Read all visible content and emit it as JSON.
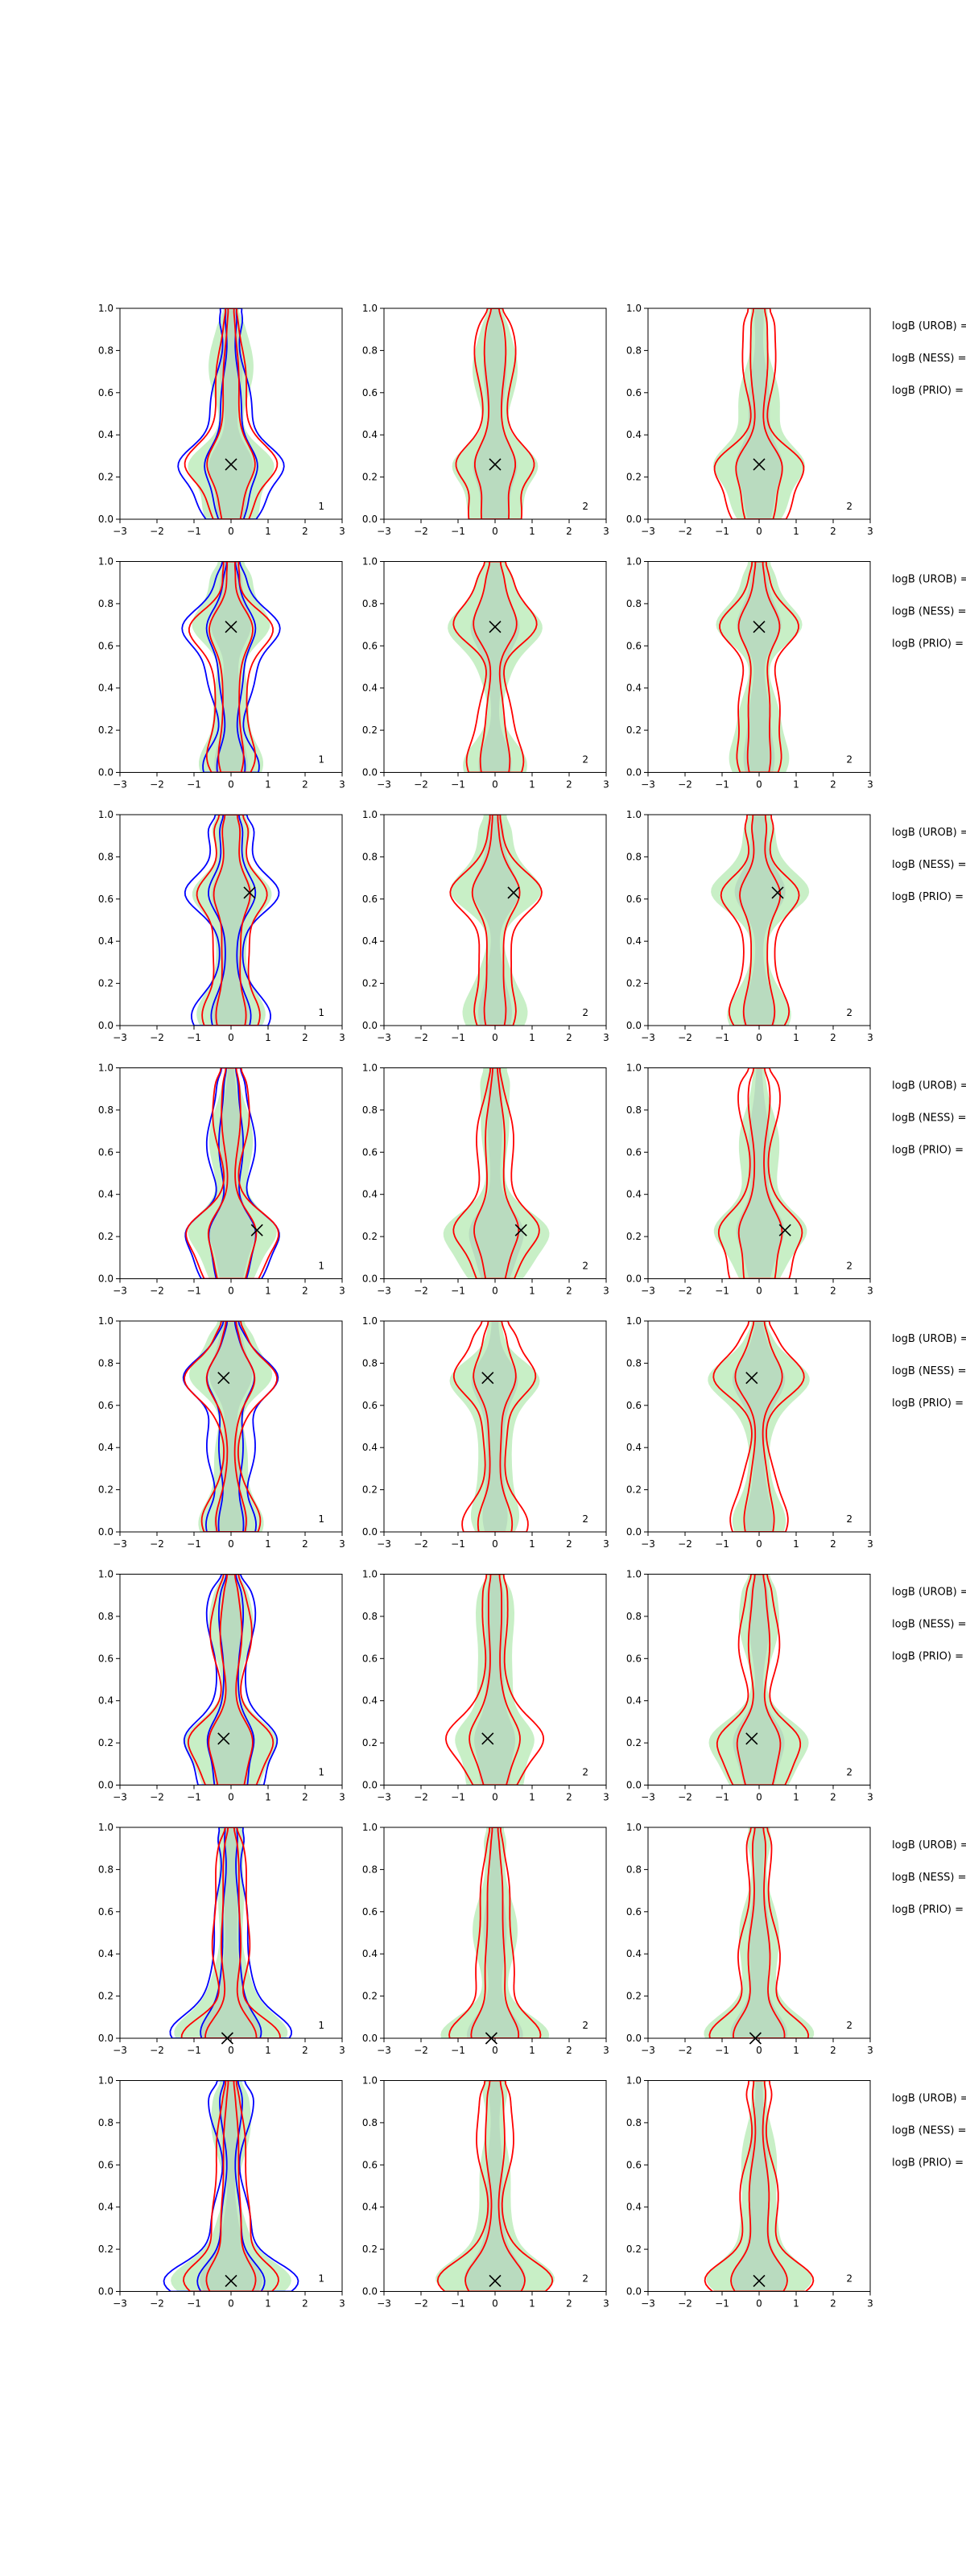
{
  "figure": {
    "legend_labels": [
      "logB (UROB) =",
      "logB (NESS) =",
      "logB (PRIO) ="
    ],
    "colors": {
      "urob": "#0000ff",
      "ness": "#00aa00",
      "prio": "#ff0000",
      "fill_light": "#c8efc6",
      "fill_dark": "#b9dbbf",
      "marker": "#000000"
    }
  },
  "chart_data": [
    {
      "row": 1,
      "col": 1,
      "type": "contour",
      "xlim": [
        -3,
        3
      ],
      "ylim": [
        0,
        1
      ],
      "xticks": [
        -3,
        -2,
        -1,
        0,
        1,
        2,
        3
      ],
      "yticks": [
        "0.0",
        "0.2",
        "0.4",
        "0.6",
        "0.8",
        "1.0"
      ],
      "marker": {
        "x": 0.0,
        "y": 0.26
      },
      "panel_label": "1"
    },
    {
      "row": 1,
      "col": 2,
      "type": "contour",
      "xlim": [
        -3,
        3
      ],
      "ylim": [
        0,
        1
      ],
      "xticks": [
        -3,
        -2,
        -1,
        0,
        1,
        2,
        3
      ],
      "yticks": [
        "0.0",
        "0.2",
        "0.4",
        "0.6",
        "0.8",
        "1.0"
      ],
      "marker": {
        "x": 0.0,
        "y": 0.26
      },
      "panel_label": "2"
    },
    {
      "row": 1,
      "col": 3,
      "type": "contour",
      "xlim": [
        -3,
        3
      ],
      "ylim": [
        0,
        1
      ],
      "xticks": [
        -3,
        -2,
        -1,
        0,
        1,
        2,
        3
      ],
      "yticks": [
        "0.0",
        "0.2",
        "0.4",
        "0.6",
        "0.8",
        "1.0"
      ],
      "marker": {
        "x": 0.0,
        "y": 0.26
      },
      "panel_label": "2"
    },
    {
      "row": 2,
      "col": 1,
      "type": "contour",
      "xlim": [
        -3,
        3
      ],
      "ylim": [
        0,
        1
      ],
      "xticks": [
        -3,
        -2,
        -1,
        0,
        1,
        2,
        3
      ],
      "yticks": [
        "0.0",
        "0.2",
        "0.4",
        "0.6",
        "0.8",
        "1.0"
      ],
      "marker": {
        "x": 0.0,
        "y": 0.69
      },
      "panel_label": "1"
    },
    {
      "row": 2,
      "col": 2,
      "type": "contour",
      "xlim": [
        -3,
        3
      ],
      "ylim": [
        0,
        1
      ],
      "xticks": [
        -3,
        -2,
        -1,
        0,
        1,
        2,
        3
      ],
      "yticks": [
        "0.0",
        "0.2",
        "0.4",
        "0.6",
        "0.8",
        "1.0"
      ],
      "marker": {
        "x": 0.0,
        "y": 0.69
      },
      "panel_label": "2"
    },
    {
      "row": 2,
      "col": 3,
      "type": "contour",
      "xlim": [
        -3,
        3
      ],
      "ylim": [
        0,
        1
      ],
      "xticks": [
        -3,
        -2,
        -1,
        0,
        1,
        2,
        3
      ],
      "yticks": [
        "0.0",
        "0.2",
        "0.4",
        "0.6",
        "0.8",
        "1.0"
      ],
      "marker": {
        "x": 0.0,
        "y": 0.69
      },
      "panel_label": "2"
    },
    {
      "row": 3,
      "col": 1,
      "type": "contour",
      "xlim": [
        -3,
        3
      ],
      "ylim": [
        0,
        1
      ],
      "xticks": [
        -3,
        -2,
        -1,
        0,
        1,
        2,
        3
      ],
      "yticks": [
        "0.0",
        "0.2",
        "0.4",
        "0.6",
        "0.8",
        "1.0"
      ],
      "marker": {
        "x": 0.5,
        "y": 0.63
      },
      "panel_label": "1"
    },
    {
      "row": 3,
      "col": 2,
      "type": "contour",
      "xlim": [
        -3,
        3
      ],
      "ylim": [
        0,
        1
      ],
      "xticks": [
        -3,
        -2,
        -1,
        0,
        1,
        2,
        3
      ],
      "yticks": [
        "0.0",
        "0.2",
        "0.4",
        "0.6",
        "0.8",
        "1.0"
      ],
      "marker": {
        "x": 0.5,
        "y": 0.63
      },
      "panel_label": "2"
    },
    {
      "row": 3,
      "col": 3,
      "type": "contour",
      "xlim": [
        -3,
        3
      ],
      "ylim": [
        0,
        1
      ],
      "xticks": [
        -3,
        -2,
        -1,
        0,
        1,
        2,
        3
      ],
      "yticks": [
        "0.0",
        "0.2",
        "0.4",
        "0.6",
        "0.8",
        "1.0"
      ],
      "marker": {
        "x": 0.5,
        "y": 0.63
      },
      "panel_label": "2"
    },
    {
      "row": 4,
      "col": 1,
      "type": "contour",
      "xlim": [
        -3,
        3
      ],
      "ylim": [
        0,
        1
      ],
      "xticks": [
        -3,
        -2,
        -1,
        0,
        1,
        2,
        3
      ],
      "yticks": [
        "0.0",
        "0.2",
        "0.4",
        "0.6",
        "0.8",
        "1.0"
      ],
      "marker": {
        "x": 0.7,
        "y": 0.23
      },
      "panel_label": "1"
    },
    {
      "row": 4,
      "col": 2,
      "type": "contour",
      "xlim": [
        -3,
        3
      ],
      "ylim": [
        0,
        1
      ],
      "xticks": [
        -3,
        -2,
        -1,
        0,
        1,
        2,
        3
      ],
      "yticks": [
        "0.0",
        "0.2",
        "0.4",
        "0.6",
        "0.8",
        "1.0"
      ],
      "marker": {
        "x": 0.7,
        "y": 0.23
      },
      "panel_label": "2"
    },
    {
      "row": 4,
      "col": 3,
      "type": "contour",
      "xlim": [
        -3,
        3
      ],
      "ylim": [
        0,
        1
      ],
      "xticks": [
        -3,
        -2,
        -1,
        0,
        1,
        2,
        3
      ],
      "yticks": [
        "0.0",
        "0.2",
        "0.4",
        "0.6",
        "0.8",
        "1.0"
      ],
      "marker": {
        "x": 0.7,
        "y": 0.23
      },
      "panel_label": "2"
    },
    {
      "row": 5,
      "col": 1,
      "type": "contour",
      "xlim": [
        -3,
        3
      ],
      "ylim": [
        0,
        1
      ],
      "xticks": [
        -3,
        -2,
        -1,
        0,
        1,
        2,
        3
      ],
      "yticks": [
        "0.0",
        "0.2",
        "0.4",
        "0.6",
        "0.8",
        "1.0"
      ],
      "marker": {
        "x": -0.2,
        "y": 0.73
      },
      "panel_label": "1"
    },
    {
      "row": 5,
      "col": 2,
      "type": "contour",
      "xlim": [
        -3,
        3
      ],
      "ylim": [
        0,
        1
      ],
      "xticks": [
        -3,
        -2,
        -1,
        0,
        1,
        2,
        3
      ],
      "yticks": [
        "0.0",
        "0.2",
        "0.4",
        "0.6",
        "0.8",
        "1.0"
      ],
      "marker": {
        "x": -0.2,
        "y": 0.73
      },
      "panel_label": "2"
    },
    {
      "row": 5,
      "col": 3,
      "type": "contour",
      "xlim": [
        -3,
        3
      ],
      "ylim": [
        0,
        1
      ],
      "xticks": [
        -3,
        -2,
        -1,
        0,
        1,
        2,
        3
      ],
      "yticks": [
        "0.0",
        "0.2",
        "0.4",
        "0.6",
        "0.8",
        "1.0"
      ],
      "marker": {
        "x": -0.2,
        "y": 0.73
      },
      "panel_label": "2"
    },
    {
      "row": 6,
      "col": 1,
      "type": "contour",
      "xlim": [
        -3,
        3
      ],
      "ylim": [
        0,
        1
      ],
      "xticks": [
        -3,
        -2,
        -1,
        0,
        1,
        2,
        3
      ],
      "yticks": [
        "0.0",
        "0.2",
        "0.4",
        "0.6",
        "0.8",
        "1.0"
      ],
      "marker": {
        "x": -0.2,
        "y": 0.22
      },
      "panel_label": "1"
    },
    {
      "row": 6,
      "col": 2,
      "type": "contour",
      "xlim": [
        -3,
        3
      ],
      "ylim": [
        0,
        1
      ],
      "xticks": [
        -3,
        -2,
        -1,
        0,
        1,
        2,
        3
      ],
      "yticks": [
        "0.0",
        "0.2",
        "0.4",
        "0.6",
        "0.8",
        "1.0"
      ],
      "marker": {
        "x": -0.2,
        "y": 0.22
      },
      "panel_label": "2"
    },
    {
      "row": 6,
      "col": 3,
      "type": "contour",
      "xlim": [
        -3,
        3
      ],
      "ylim": [
        0,
        1
      ],
      "xticks": [
        -3,
        -2,
        -1,
        0,
        1,
        2,
        3
      ],
      "yticks": [
        "0.0",
        "0.2",
        "0.4",
        "0.6",
        "0.8",
        "1.0"
      ],
      "marker": {
        "x": -0.2,
        "y": 0.22
      },
      "panel_label": "2"
    },
    {
      "row": 7,
      "col": 1,
      "type": "contour",
      "xlim": [
        -3,
        3
      ],
      "ylim": [
        0,
        1
      ],
      "xticks": [
        -3,
        -2,
        -1,
        0,
        1,
        2,
        3
      ],
      "yticks": [
        "0.0",
        "0.2",
        "0.4",
        "0.6",
        "0.8",
        "1.0"
      ],
      "marker": {
        "x": -0.1,
        "y": 0.0
      },
      "panel_label": "1"
    },
    {
      "row": 7,
      "col": 2,
      "type": "contour",
      "xlim": [
        -3,
        3
      ],
      "ylim": [
        0,
        1
      ],
      "xticks": [
        -3,
        -2,
        -1,
        0,
        1,
        2,
        3
      ],
      "yticks": [
        "0.0",
        "0.2",
        "0.4",
        "0.6",
        "0.8",
        "1.0"
      ],
      "marker": {
        "x": -0.1,
        "y": 0.0
      },
      "panel_label": "2"
    },
    {
      "row": 7,
      "col": 3,
      "type": "contour",
      "xlim": [
        -3,
        3
      ],
      "ylim": [
        0,
        1
      ],
      "xticks": [
        -3,
        -2,
        -1,
        0,
        1,
        2,
        3
      ],
      "yticks": [
        "0.0",
        "0.2",
        "0.4",
        "0.6",
        "0.8",
        "1.0"
      ],
      "marker": {
        "x": -0.1,
        "y": 0.0
      },
      "panel_label": "2"
    },
    {
      "row": 8,
      "col": 1,
      "type": "contour",
      "xlim": [
        -3,
        3
      ],
      "ylim": [
        0,
        1
      ],
      "xticks": [
        -3,
        -2,
        -1,
        0,
        1,
        2,
        3
      ],
      "yticks": [
        "0.0",
        "0.2",
        "0.4",
        "0.6",
        "0.8",
        "1.0"
      ],
      "marker": {
        "x": 0.0,
        "y": 0.05
      },
      "panel_label": "1"
    },
    {
      "row": 8,
      "col": 2,
      "type": "contour",
      "xlim": [
        -3,
        3
      ],
      "ylim": [
        0,
        1
      ],
      "xticks": [
        -3,
        -2,
        -1,
        0,
        1,
        2,
        3
      ],
      "yticks": [
        "0.0",
        "0.2",
        "0.4",
        "0.6",
        "0.8",
        "1.0"
      ],
      "marker": {
        "x": 0.0,
        "y": 0.05
      },
      "panel_label": "2"
    },
    {
      "row": 8,
      "col": 3,
      "type": "contour",
      "xlim": [
        -3,
        3
      ],
      "ylim": [
        0,
        1
      ],
      "xticks": [
        -3,
        -2,
        -1,
        0,
        1,
        2,
        3
      ],
      "yticks": [
        "0.0",
        "0.2",
        "0.4",
        "0.6",
        "0.8",
        "1.0"
      ],
      "marker": {
        "x": 0.0,
        "y": 0.05
      },
      "panel_label": "2"
    }
  ]
}
